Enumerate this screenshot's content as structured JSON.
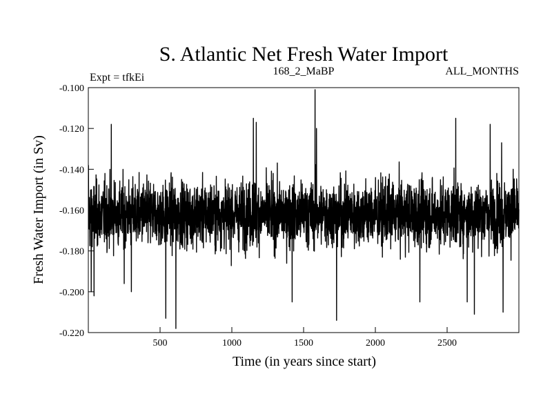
{
  "chart_data": {
    "type": "line",
    "title": "S. Atlantic Net Fresh Water Import",
    "subtitle_left": "Expt = tfkEi",
    "subtitle_center": "168_2_MaBP",
    "subtitle_right": "ALL_MONTHS",
    "xlabel": "Time (in years since start)",
    "ylabel": "Fresh Water Import (in Sv)",
    "xlim": [
      0,
      3000
    ],
    "ylim": [
      -0.22,
      -0.1
    ],
    "x_ticks": [
      500,
      1000,
      1500,
      2000,
      2500
    ],
    "x_tick_labels": [
      "500",
      "1000",
      "1500",
      "2000",
      "2500"
    ],
    "y_ticks": [
      -0.22,
      -0.2,
      -0.18,
      -0.16,
      -0.14,
      -0.12,
      -0.1
    ],
    "y_tick_labels": [
      "-0.220",
      "-0.200",
      "-0.180",
      "-0.160",
      "-0.140",
      "-0.120",
      "-0.100"
    ],
    "grid": false,
    "series": [
      {
        "color": "#000000",
        "sampling": "annual, 1 value per year, x = 1..3000",
        "mean": -0.162,
        "typical_range": [
          -0.185,
          -0.14
        ],
        "notable_points": [
          {
            "x": 1,
            "y": -0.138
          },
          {
            "x": 20,
            "y": -0.2
          },
          {
            "x": 40,
            "y": -0.202
          },
          {
            "x": 160,
            "y": -0.118
          },
          {
            "x": 250,
            "y": -0.196
          },
          {
            "x": 300,
            "y": -0.2
          },
          {
            "x": 540,
            "y": -0.213
          },
          {
            "x": 610,
            "y": -0.218
          },
          {
            "x": 1150,
            "y": -0.115
          },
          {
            "x": 1170,
            "y": -0.117
          },
          {
            "x": 1420,
            "y": -0.205
          },
          {
            "x": 1580,
            "y": -0.101
          },
          {
            "x": 1590,
            "y": -0.12
          },
          {
            "x": 1730,
            "y": -0.214
          },
          {
            "x": 2310,
            "y": -0.205
          },
          {
            "x": 2560,
            "y": -0.115
          },
          {
            "x": 2640,
            "y": -0.205
          },
          {
            "x": 2690,
            "y": -0.211
          },
          {
            "x": 2800,
            "y": -0.118
          },
          {
            "x": 2880,
            "y": -0.127
          },
          {
            "x": 2890,
            "y": -0.21
          },
          {
            "x": 2960,
            "y": -0.14
          }
        ]
      }
    ]
  }
}
